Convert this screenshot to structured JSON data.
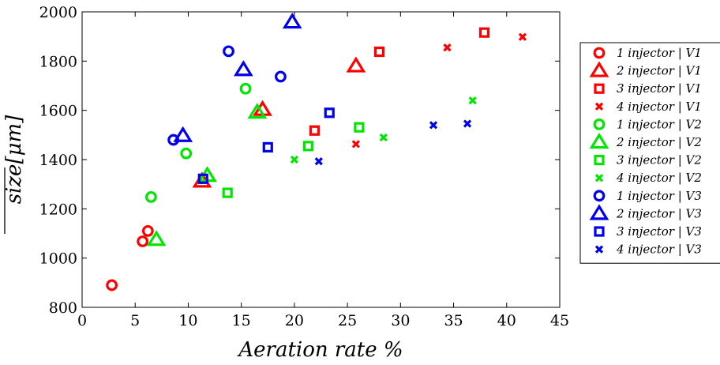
{
  "chart_data": {
    "type": "scatter",
    "xlabel": "Aeration rate %",
    "ylabel": "size[μm]",
    "xlim": [
      0,
      45
    ],
    "ylim": [
      800,
      2000
    ],
    "xticks": [
      0,
      5,
      10,
      15,
      20,
      25,
      30,
      35,
      40,
      45
    ],
    "yticks": [
      800,
      1000,
      1200,
      1400,
      1600,
      1800,
      2000
    ],
    "grid": false,
    "legend_position": "outside-right",
    "colors": {
      "V1": "#ff0000",
      "V2": "#00e600",
      "V3": "#0000ee"
    },
    "series": [
      {
        "name": "1 injector | V1",
        "color": "V1",
        "marker": "circle",
        "points": [
          [
            2.8,
            890
          ],
          [
            5.7,
            1068
          ],
          [
            6.2,
            1110
          ]
        ]
      },
      {
        "name": "2 injector | V1",
        "color": "V1",
        "marker": "triangle",
        "points": [
          [
            11.3,
            1312
          ],
          [
            17.0,
            1603
          ],
          [
            25.8,
            1780
          ]
        ]
      },
      {
        "name": "3 injector | V1",
        "color": "V1",
        "marker": "square",
        "points": [
          [
            21.9,
            1518
          ],
          [
            28.0,
            1838
          ],
          [
            37.9,
            1916
          ]
        ]
      },
      {
        "name": "4 injector | V1",
        "color": "V1",
        "marker": "x",
        "points": [
          [
            25.8,
            1463
          ],
          [
            34.4,
            1855
          ],
          [
            41.5,
            1898
          ]
        ]
      },
      {
        "name": "1 injector | V2",
        "color": "V2",
        "marker": "circle",
        "points": [
          [
            6.5,
            1248
          ],
          [
            9.8,
            1425
          ],
          [
            15.4,
            1688
          ]
        ]
      },
      {
        "name": "2 injector | V2",
        "color": "V2",
        "marker": "triangle",
        "points": [
          [
            7.0,
            1075
          ],
          [
            11.8,
            1335
          ],
          [
            16.5,
            1592
          ]
        ]
      },
      {
        "name": "3 injector | V2",
        "color": "V2",
        "marker": "square",
        "points": [
          [
            13.7,
            1265
          ],
          [
            21.3,
            1455
          ],
          [
            26.1,
            1531
          ]
        ]
      },
      {
        "name": "4 injector | V2",
        "color": "V2",
        "marker": "x",
        "points": [
          [
            20.0,
            1400
          ],
          [
            28.4,
            1490
          ],
          [
            36.8,
            1640
          ]
        ]
      },
      {
        "name": "1 injector | V3",
        "color": "V3",
        "marker": "circle",
        "points": [
          [
            8.6,
            1480
          ],
          [
            13.8,
            1840
          ],
          [
            18.7,
            1737
          ]
        ]
      },
      {
        "name": "2 injector | V3",
        "color": "V3",
        "marker": "triangle",
        "points": [
          [
            9.5,
            1497
          ],
          [
            15.2,
            1765
          ],
          [
            19.8,
            1958
          ]
        ]
      },
      {
        "name": "3 injector | V3",
        "color": "V3",
        "marker": "square",
        "points": [
          [
            11.4,
            1322
          ],
          [
            17.5,
            1450
          ],
          [
            23.3,
            1590
          ]
        ]
      },
      {
        "name": "4 injector | V3",
        "color": "V3",
        "marker": "x",
        "points": [
          [
            22.3,
            1393
          ],
          [
            33.1,
            1540
          ],
          [
            36.3,
            1546
          ]
        ]
      }
    ]
  }
}
